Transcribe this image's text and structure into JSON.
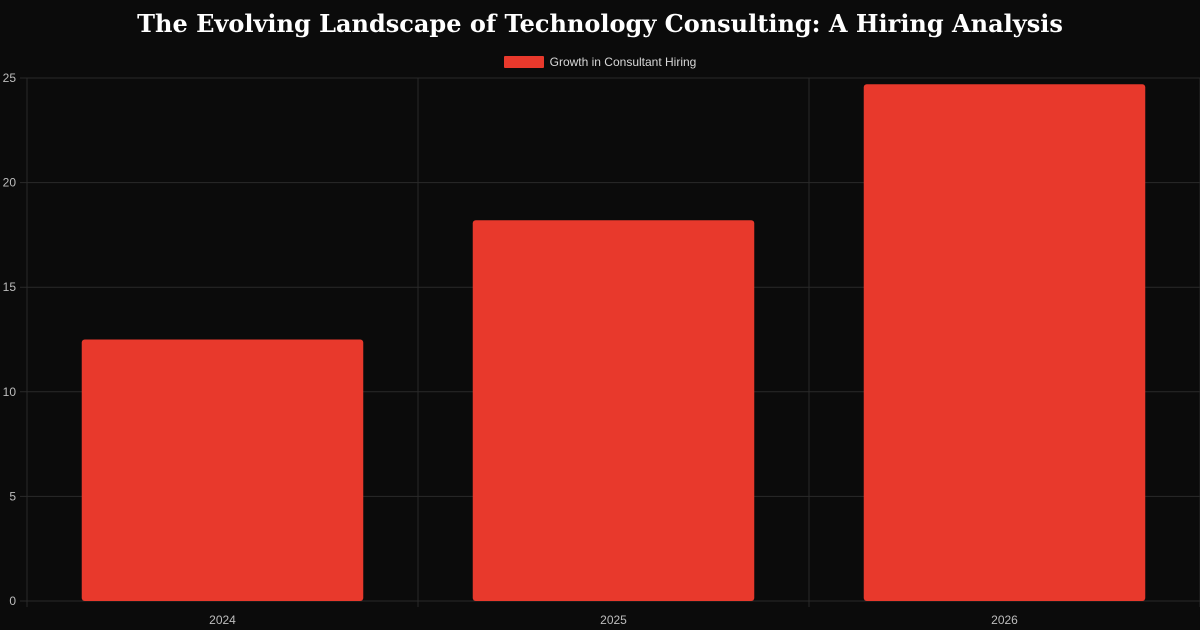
{
  "chart_data": {
    "type": "bar",
    "title": "The Evolving Landscape of Technology Consulting: A Hiring Analysis",
    "categories": [
      "2024",
      "2025",
      "2026"
    ],
    "series": [
      {
        "name": "Growth in Consultant Hiring",
        "values": [
          12.5,
          18.2,
          24.7
        ]
      }
    ],
    "ylim": [
      0,
      25
    ],
    "yticks": [
      "0",
      "5",
      "10",
      "15",
      "20",
      "25"
    ],
    "legend_position": "top-center",
    "grid": true,
    "colors": {
      "bar": "#e8392c",
      "background": "#0b0b0b",
      "grid": "#2a2a2a"
    }
  }
}
